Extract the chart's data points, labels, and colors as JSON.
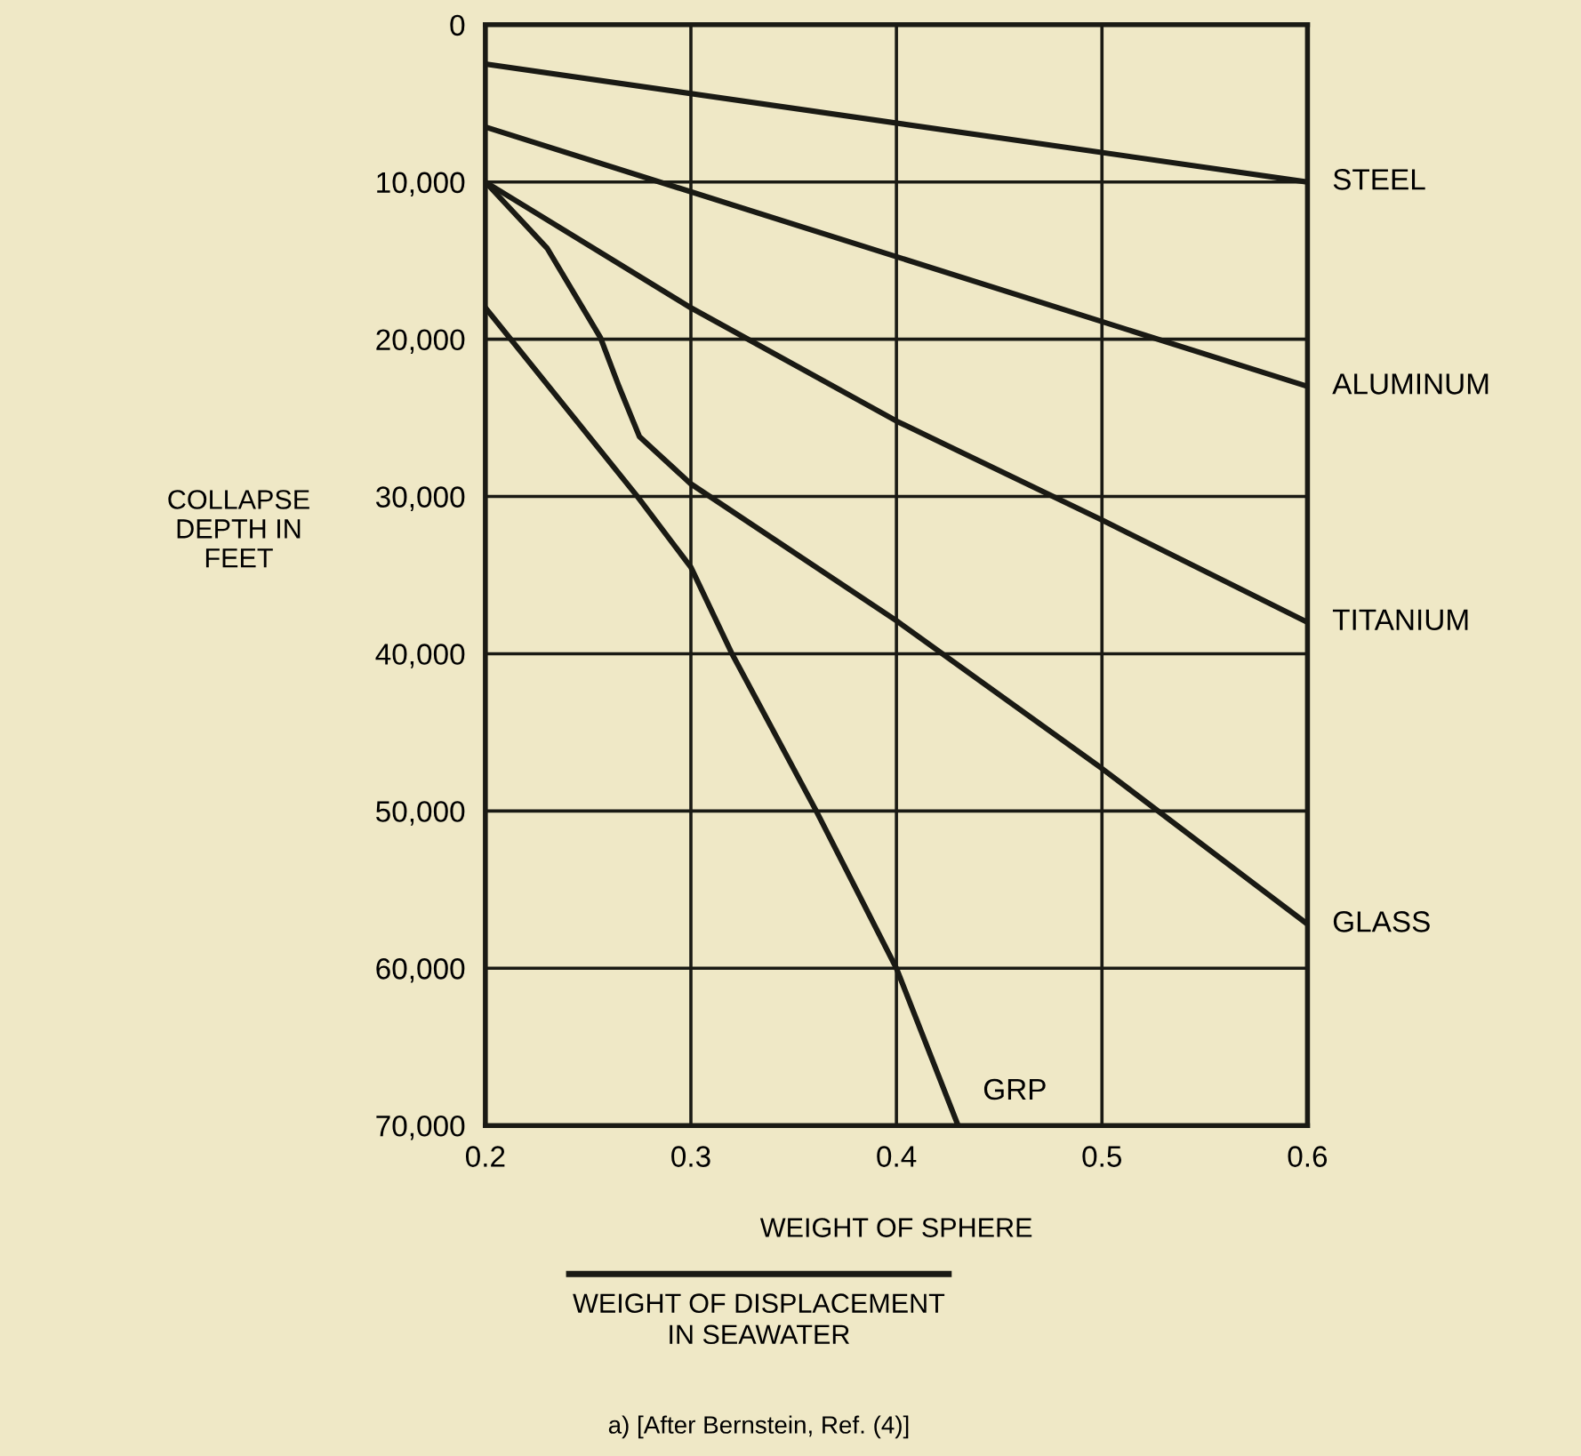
{
  "chart_data": {
    "type": "line",
    "xlabel": "WEIGHT OF SPHERE",
    "ylabel": "COLLAPSE\nDEPTH IN\nFEET",
    "annotations": [
      "WEIGHT OF DISPLACEMENT\nIN SEAWATER",
      "a) [After Bernstein, Ref. (4)]"
    ],
    "xlim": [
      0.2,
      0.6
    ],
    "xticks": [
      0.2,
      0.3,
      0.4,
      0.5,
      0.6
    ],
    "ylim": [
      70000,
      0
    ],
    "yticks": [
      0,
      {
        "value": 10000,
        "label": "10,000"
      },
      {
        "value": 20000,
        "label": "20,000"
      },
      {
        "value": 30000,
        "label": "30,000"
      },
      {
        "value": 40000,
        "label": "40,000"
      },
      {
        "value": 50000,
        "label": "50,000"
      },
      {
        "value": 60000,
        "label": "60,000"
      },
      {
        "value": 70000,
        "label": "70,000"
      }
    ],
    "grid": true,
    "legend": false,
    "marker": "none",
    "line_style": "solid",
    "series": [
      {
        "name": "STEEL",
        "color": "#1a1a14",
        "x": [
          0.2,
          0.6
        ],
        "values": [
          2500,
          10000
        ]
      },
      {
        "name": "ALUMINUM",
        "color": "#1a1a14",
        "x": [
          0.2,
          0.6
        ],
        "values": [
          6500,
          23000
        ]
      },
      {
        "name": "TITANIUM",
        "color": "#1a1a14",
        "x": [
          0.2,
          0.3,
          0.4,
          0.5,
          0.6
        ],
        "values": [
          10000,
          18000,
          25200,
          31500,
          38000
        ]
      },
      {
        "name": "GLASS",
        "color": "#1a1a14",
        "x": [
          0.2,
          0.23,
          0.256,
          0.265,
          0.275,
          0.3,
          0.4,
          0.5,
          0.6
        ],
        "values": [
          10000,
          14200,
          19900,
          23000,
          26200,
          29200,
          37900,
          47300,
          57200
        ]
      },
      {
        "name": "GRP",
        "color": "#1a1a14",
        "x": [
          0.2,
          0.274,
          0.3,
          0.32,
          0.361,
          0.4,
          0.43
        ],
        "values": [
          18000,
          30000,
          34500,
          40000,
          50000,
          60000,
          70000
        ]
      }
    ]
  }
}
